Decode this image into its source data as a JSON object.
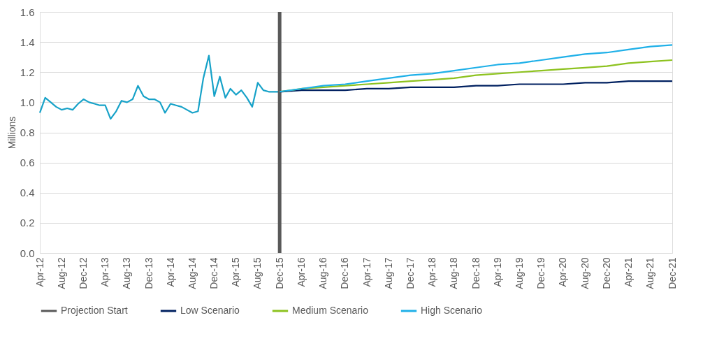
{
  "chart_data": {
    "type": "line",
    "ylabel": "Millions",
    "xlim": [
      "2012-04",
      "2021-12"
    ],
    "xticks": [
      {
        "value": "2012-04",
        "label": "Apr-12"
      },
      {
        "value": "2012-08",
        "label": "Aug-12"
      },
      {
        "value": "2012-12",
        "label": "Dec-12"
      },
      {
        "value": "2013-04",
        "label": "Apr-13"
      },
      {
        "value": "2013-08",
        "label": "Aug-13"
      },
      {
        "value": "2013-12",
        "label": "Dec-13"
      },
      {
        "value": "2014-04",
        "label": "Apr-14"
      },
      {
        "value": "2014-08",
        "label": "Aug-14"
      },
      {
        "value": "2014-12",
        "label": "Dec-14"
      },
      {
        "value": "2015-04",
        "label": "Apr-15"
      },
      {
        "value": "2015-08",
        "label": "Aug-15"
      },
      {
        "value": "2015-12",
        "label": "Dec-15"
      },
      {
        "value": "2016-04",
        "label": "Apr-16"
      },
      {
        "value": "2016-08",
        "label": "Aug-16"
      },
      {
        "value": "2016-12",
        "label": "Dec-16"
      },
      {
        "value": "2017-04",
        "label": "Apr-17"
      },
      {
        "value": "2017-08",
        "label": "Aug-17"
      },
      {
        "value": "2017-12",
        "label": "Dec-17"
      },
      {
        "value": "2018-04",
        "label": "Apr-18"
      },
      {
        "value": "2018-08",
        "label": "Aug-18"
      },
      {
        "value": "2018-12",
        "label": "Dec-18"
      },
      {
        "value": "2019-04",
        "label": "Apr-19"
      },
      {
        "value": "2019-08",
        "label": "Aug-19"
      },
      {
        "value": "2019-12",
        "label": "Dec-19"
      },
      {
        "value": "2020-04",
        "label": "Apr-20"
      },
      {
        "value": "2020-08",
        "label": "Aug-20"
      },
      {
        "value": "2020-12",
        "label": "Dec-20"
      },
      {
        "value": "2021-04",
        "label": "Apr-21"
      },
      {
        "value": "2021-08",
        "label": "Aug-21"
      },
      {
        "value": "2021-12",
        "label": "Dec-21"
      }
    ],
    "ylim": [
      0,
      1.6
    ],
    "yticks": [
      {
        "value": 0,
        "label": "0.0"
      },
      {
        "value": 0.2,
        "label": "0.2"
      },
      {
        "value": 0.4,
        "label": "0.4"
      },
      {
        "value": 0.6,
        "label": "0.6"
      },
      {
        "value": 0.8,
        "label": "0.8"
      },
      {
        "value": 1.0,
        "label": "1.0"
      },
      {
        "value": 1.2,
        "label": "1.2"
      },
      {
        "value": 1.4,
        "label": "1.4"
      },
      {
        "value": 1.6,
        "label": "1.6"
      }
    ],
    "grid": "y",
    "legend": "bottom",
    "marker": "none",
    "line_style": "solid",
    "ref_lines": [
      {
        "axis": "x",
        "value": "2015-12",
        "label": "Projection Start",
        "color": "#595959"
      }
    ],
    "series": [
      {
        "color": "#17a2c8",
        "x": [
          "2012-04",
          "2012-05",
          "2012-06",
          "2012-07",
          "2012-08",
          "2012-09",
          "2012-10",
          "2012-11",
          "2012-12",
          "2013-01",
          "2013-02",
          "2013-03",
          "2013-04",
          "2013-05",
          "2013-06",
          "2013-07",
          "2013-08",
          "2013-09",
          "2013-10",
          "2013-11",
          "2013-12",
          "2014-01",
          "2014-02",
          "2014-03",
          "2014-04",
          "2014-05",
          "2014-06",
          "2014-07",
          "2014-08",
          "2014-09",
          "2014-10",
          "2014-11",
          "2014-12",
          "2015-01",
          "2015-02",
          "2015-03",
          "2015-04",
          "2015-05",
          "2015-06",
          "2015-07",
          "2015-08",
          "2015-09",
          "2015-10",
          "2015-11",
          "2015-12"
        ],
        "values": [
          0.93,
          1.03,
          1.0,
          0.97,
          0.95,
          0.96,
          0.95,
          0.99,
          1.02,
          1.0,
          0.99,
          0.98,
          0.98,
          0.89,
          0.94,
          1.01,
          1.0,
          1.02,
          1.11,
          1.04,
          1.02,
          1.02,
          1.0,
          0.93,
          0.99,
          0.98,
          0.97,
          0.95,
          0.93,
          0.94,
          1.16,
          1.31,
          1.04,
          1.17,
          1.03,
          1.09,
          1.05,
          1.08,
          1.03,
          0.97,
          1.13,
          1.08,
          1.07,
          1.07,
          1.07
        ]
      },
      {
        "name": "Low Scenario",
        "color": "#002060",
        "x": [
          "2015-12",
          "2016-04",
          "2016-08",
          "2016-12",
          "2017-04",
          "2017-08",
          "2017-12",
          "2018-04",
          "2018-08",
          "2018-12",
          "2019-04",
          "2019-08",
          "2019-12",
          "2020-04",
          "2020-08",
          "2020-12",
          "2021-04",
          "2021-08",
          "2021-12"
        ],
        "values": [
          1.07,
          1.08,
          1.08,
          1.08,
          1.09,
          1.09,
          1.1,
          1.1,
          1.1,
          1.11,
          1.11,
          1.12,
          1.12,
          1.12,
          1.13,
          1.13,
          1.14,
          1.14,
          1.14
        ]
      },
      {
        "name": "Medium Scenario",
        "color": "#8dc21f",
        "x": [
          "2015-12",
          "2016-04",
          "2016-08",
          "2016-12",
          "2017-04",
          "2017-08",
          "2017-12",
          "2018-04",
          "2018-08",
          "2018-12",
          "2019-04",
          "2019-08",
          "2019-12",
          "2020-04",
          "2020-08",
          "2020-12",
          "2021-04",
          "2021-08",
          "2021-12"
        ],
        "values": [
          1.07,
          1.09,
          1.1,
          1.11,
          1.12,
          1.13,
          1.14,
          1.15,
          1.16,
          1.18,
          1.19,
          1.2,
          1.21,
          1.22,
          1.23,
          1.24,
          1.26,
          1.27,
          1.28
        ]
      },
      {
        "name": "High Scenario",
        "color": "#1fb0e8",
        "x": [
          "2015-12",
          "2016-04",
          "2016-08",
          "2016-12",
          "2017-04",
          "2017-08",
          "2017-12",
          "2018-04",
          "2018-08",
          "2018-12",
          "2019-04",
          "2019-08",
          "2019-12",
          "2020-04",
          "2020-08",
          "2020-12",
          "2021-04",
          "2021-08",
          "2021-12"
        ],
        "values": [
          1.07,
          1.09,
          1.11,
          1.12,
          1.14,
          1.16,
          1.18,
          1.19,
          1.21,
          1.23,
          1.25,
          1.26,
          1.28,
          1.3,
          1.32,
          1.33,
          1.35,
          1.37,
          1.38
        ]
      }
    ]
  }
}
